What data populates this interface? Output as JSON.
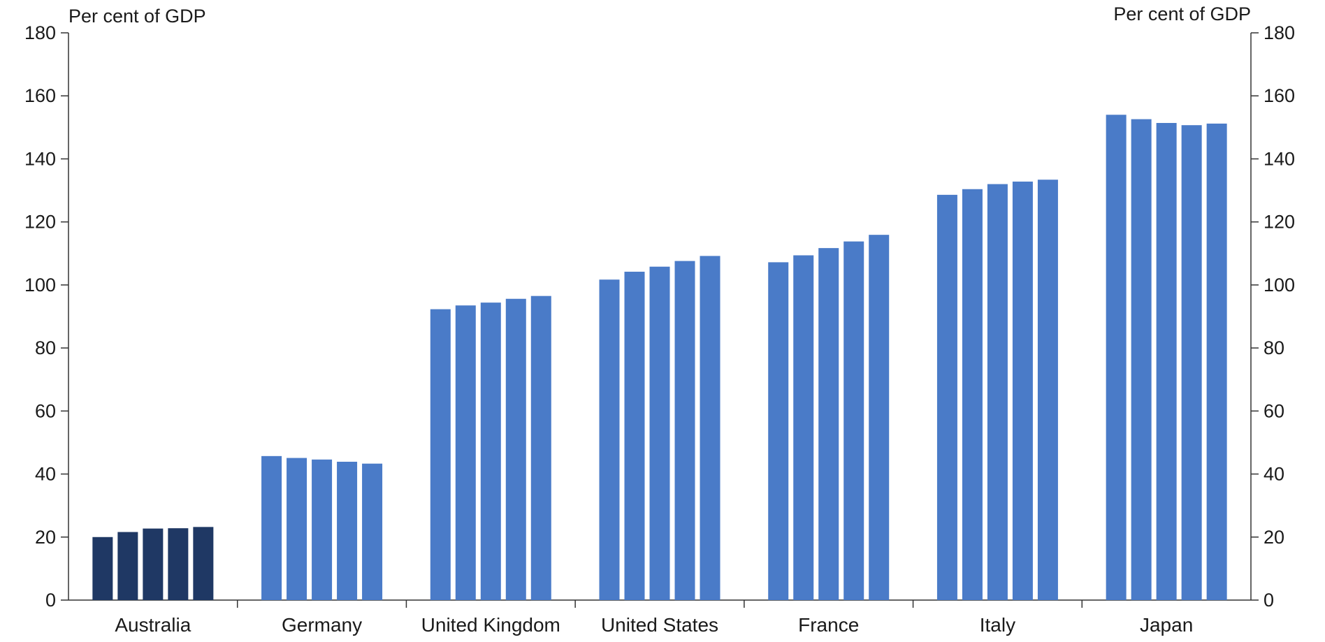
{
  "chart_data": {
    "type": "bar",
    "left_axis_unit": "Per cent of GDP",
    "right_axis_unit": "Per cent of GDP",
    "ylim": [
      0,
      180
    ],
    "yticks": [
      "0",
      "20",
      "40",
      "60",
      "80",
      "100",
      "120",
      "140",
      "160",
      "180"
    ],
    "categories": [
      "Australia",
      "Germany",
      "United Kingdom",
      "United States",
      "France",
      "Italy",
      "Japan"
    ],
    "values": [
      [
        20.0,
        21.6,
        22.7,
        22.8,
        23.2
      ],
      [
        45.7,
        45.1,
        44.6,
        43.9,
        43.3
      ],
      [
        92.3,
        93.5,
        94.4,
        95.6,
        96.5
      ],
      [
        101.7,
        104.2,
        105.8,
        107.6,
        109.2
      ],
      [
        107.2,
        109.4,
        111.7,
        113.8,
        115.9
      ],
      [
        128.6,
        130.4,
        132.0,
        132.8,
        133.4
      ],
      [
        154.0,
        152.6,
        151.4,
        150.7,
        151.2
      ]
    ],
    "colors": {
      "Australia": "#1f3864",
      "default": "#4a7bc8"
    },
    "grid": false
  }
}
